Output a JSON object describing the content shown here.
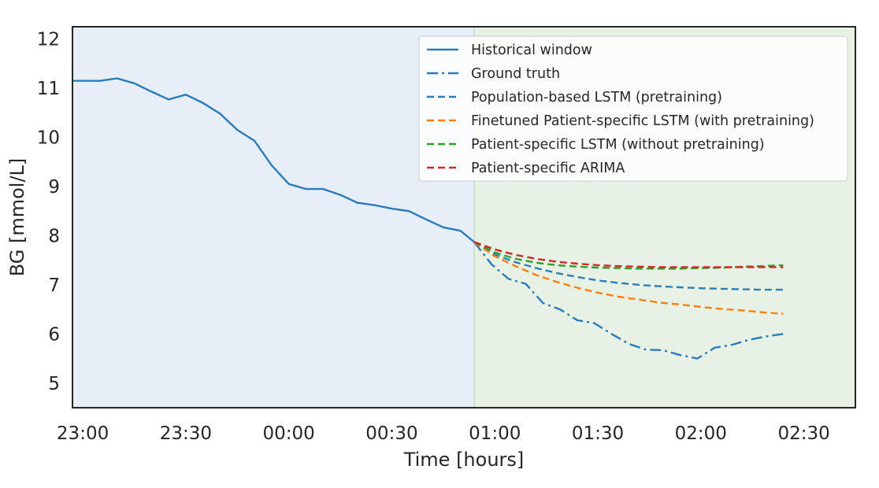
{
  "chart_data": {
    "type": "line",
    "xlabel": "Time [hours]",
    "ylabel": "BG [mmol/L]",
    "x_unit": "hours since 23:00",
    "xlim": [
      -0.05,
      3.75
    ],
    "ylim": [
      4.5,
      12.25
    ],
    "x_ticks": [
      {
        "value": 0.0,
        "label": "23:00"
      },
      {
        "value": 0.5,
        "label": "23:30"
      },
      {
        "value": 1.0,
        "label": "00:00"
      },
      {
        "value": 1.5,
        "label": "00:30"
      },
      {
        "value": 2.0,
        "label": "01:00"
      },
      {
        "value": 2.5,
        "label": "01:30"
      },
      {
        "value": 3.0,
        "label": "02:00"
      },
      {
        "value": 3.5,
        "label": "02:30"
      }
    ],
    "y_ticks": [
      5,
      6,
      7,
      8,
      9,
      10,
      11,
      12
    ],
    "grid": false,
    "legend_position": "top-right",
    "regions": [
      {
        "name": "historical",
        "x0": -0.05,
        "x1": 1.9,
        "color": "#e6eff7"
      },
      {
        "name": "prediction",
        "x0": 1.9,
        "x1": 3.75,
        "color": "#e7f2e4"
      }
    ],
    "series": [
      {
        "name": "Historical window",
        "color": "#2b7bba",
        "style": "solid",
        "x": [
          -0.05,
          0.0,
          0.0833,
          0.1667,
          0.25,
          0.3333,
          0.4167,
          0.5,
          0.5833,
          0.6667,
          0.75,
          0.8333,
          0.9167,
          1.0,
          1.0833,
          1.1667,
          1.25,
          1.3333,
          1.4167,
          1.5,
          1.5833,
          1.6667,
          1.75,
          1.8333,
          1.9
        ],
        "y": [
          11.15,
          11.15,
          11.15,
          11.2,
          11.1,
          10.93,
          10.77,
          10.87,
          10.7,
          10.48,
          10.15,
          9.93,
          9.43,
          9.05,
          8.95,
          8.95,
          8.83,
          8.67,
          8.62,
          8.55,
          8.5,
          8.33,
          8.17,
          8.1,
          7.87
        ]
      },
      {
        "name": "Ground truth",
        "color": "#2b7bba",
        "style": "dashdot",
        "x": [
          1.9,
          1.9833,
          2.0667,
          2.15,
          2.2333,
          2.3167,
          2.4,
          2.4833,
          2.5667,
          2.65,
          2.7333,
          2.8167,
          2.9,
          2.9833,
          3.0667,
          3.15,
          3.2333,
          3.3167,
          3.4
        ],
        "y": [
          7.87,
          7.42,
          7.12,
          7.02,
          6.63,
          6.5,
          6.28,
          6.22,
          6.0,
          5.8,
          5.68,
          5.67,
          5.57,
          5.5,
          5.72,
          5.78,
          5.88,
          5.95,
          6.0
        ]
      },
      {
        "name": "Population-based LSTM (pretraining)",
        "color": "#2c7fb8",
        "style": "dashed",
        "x": [
          1.9,
          2.0,
          2.1,
          2.2,
          2.3,
          2.4,
          2.5,
          2.6,
          2.7,
          2.8,
          2.9,
          3.0,
          3.1,
          3.2,
          3.3,
          3.4
        ],
        "y": [
          7.87,
          7.62,
          7.46,
          7.34,
          7.24,
          7.16,
          7.09,
          7.04,
          7.0,
          6.97,
          6.95,
          6.93,
          6.92,
          6.91,
          6.9,
          6.9
        ]
      },
      {
        "name": "Finetuned Patient-specific LSTM (with pretraining)",
        "color": "#ff7f0e",
        "style": "dashed",
        "x": [
          1.9,
          2.0,
          2.1,
          2.2,
          2.3,
          2.4,
          2.5,
          2.6,
          2.7,
          2.8,
          2.9,
          3.0,
          3.1,
          3.2,
          3.3,
          3.4
        ],
        "y": [
          7.87,
          7.58,
          7.38,
          7.2,
          7.06,
          6.94,
          6.84,
          6.76,
          6.7,
          6.64,
          6.6,
          6.55,
          6.51,
          6.48,
          6.44,
          6.41
        ]
      },
      {
        "name": "Patient-specific LSTM (without pretraining)",
        "color": "#2ca02c",
        "style": "dashed",
        "x": [
          1.9,
          2.0,
          2.1,
          2.2,
          2.3,
          2.4,
          2.5,
          2.6,
          2.7,
          2.8,
          2.9,
          3.0,
          3.1,
          3.2,
          3.3,
          3.4
        ],
        "y": [
          7.87,
          7.66,
          7.53,
          7.45,
          7.4,
          7.37,
          7.35,
          7.34,
          7.33,
          7.33,
          7.33,
          7.34,
          7.35,
          7.37,
          7.38,
          7.4
        ]
      },
      {
        "name": "Patient-specific ARIMA",
        "color": "#d62728",
        "style": "dashed",
        "x": [
          1.9,
          2.0,
          2.1,
          2.2,
          2.3,
          2.4,
          2.5,
          2.6,
          2.7,
          2.8,
          2.9,
          3.0,
          3.1,
          3.2,
          3.3,
          3.4
        ],
        "y": [
          7.87,
          7.72,
          7.61,
          7.53,
          7.47,
          7.43,
          7.4,
          7.38,
          7.37,
          7.36,
          7.36,
          7.36,
          7.36,
          7.36,
          7.36,
          7.36
        ]
      }
    ]
  }
}
